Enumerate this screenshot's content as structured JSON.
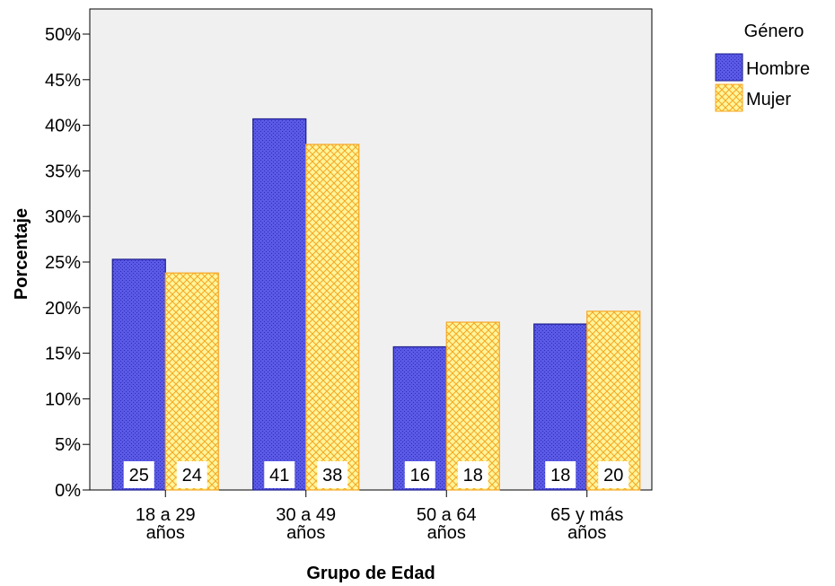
{
  "chart_data": {
    "type": "bar",
    "xlabel": "Grupo de Edad",
    "ylabel": "Porcentaje",
    "ylim": [
      0,
      50
    ],
    "yticks": [
      "0%",
      "5%",
      "10%",
      "15%",
      "20%",
      "25%",
      "30%",
      "35%",
      "40%",
      "45%",
      "50%"
    ],
    "categories": [
      [
        "18 a 29",
        "años"
      ],
      [
        "30 a 49",
        "años"
      ],
      [
        "50 a 64",
        "años"
      ],
      [
        "65 y más",
        "años"
      ]
    ],
    "legend": {
      "title": "Género",
      "position": "top-right"
    },
    "series": [
      {
        "name": "Hombre",
        "values": [
          25.3,
          40.7,
          15.7,
          18.2
        ],
        "labels": [
          "25",
          "41",
          "16",
          "18"
        ],
        "color": "#5a5ae6",
        "stroke": "#1a1a8c"
      },
      {
        "name": "Mujer",
        "values": [
          23.8,
          37.9,
          18.4,
          19.6
        ],
        "labels": [
          "24",
          "38",
          "18",
          "20"
        ],
        "color": "#ffee6e",
        "stroke": "#f5a623"
      }
    ],
    "plot_background": "#f0f0f0",
    "grid": false
  }
}
